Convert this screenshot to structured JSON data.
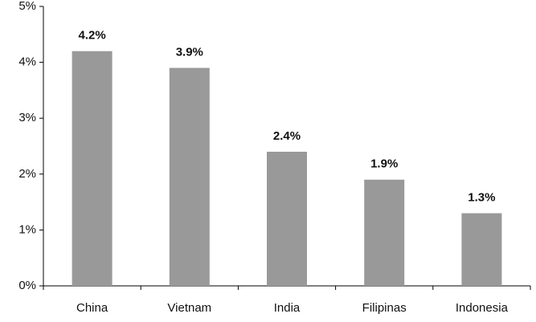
{
  "chart_data": {
    "type": "bar",
    "categories": [
      "China",
      "Vietnam",
      "India",
      "Filipinas",
      "Indonesia"
    ],
    "values": [
      4.2,
      3.9,
      2.4,
      1.9,
      1.3
    ],
    "value_labels": [
      "4.2%",
      "3.9%",
      "2.4%",
      "1.9%",
      "1.3%"
    ],
    "color": "#999999",
    "ylim": [
      0,
      5
    ],
    "yticks": [
      {
        "value": 0,
        "label": "0%"
      },
      {
        "value": 1,
        "label": "1%"
      },
      {
        "value": 2,
        "label": "2%"
      },
      {
        "value": 3,
        "label": "3%"
      },
      {
        "value": 4,
        "label": "4%"
      },
      {
        "value": 5,
        "label": "5%"
      }
    ],
    "grid": false
  }
}
